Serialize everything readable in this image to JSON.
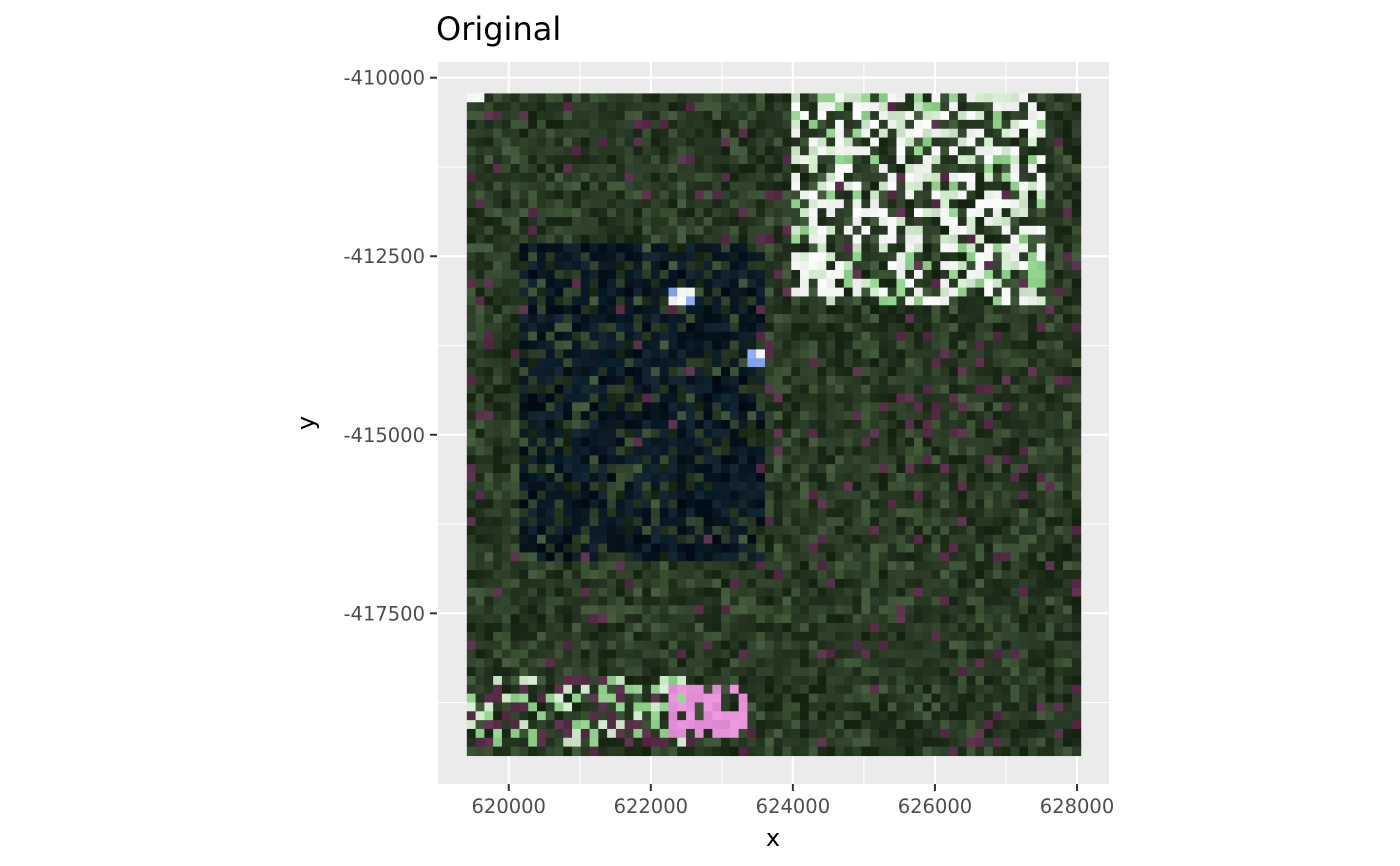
{
  "chart_data": {
    "type": "heatmap",
    "title": "Original",
    "xlabel": "x",
    "ylabel": "y",
    "xlim": [
      618990,
      628450
    ],
    "ylim": [
      -419890,
      -409780
    ],
    "raster_extent": {
      "x": [
        619410,
        628050
      ],
      "y": [
        -419490,
        -410220
      ]
    },
    "x_ticks": [
      620000,
      622000,
      624000,
      626000,
      628000
    ],
    "x_tick_labels": [
      "620000",
      "622000",
      "624000",
      "626000",
      "628000"
    ],
    "y_ticks": [
      -410000,
      -412500,
      -415000,
      -417500
    ],
    "y_tick_labels": [
      "-410000",
      "-412500",
      "-415000",
      "-417500"
    ],
    "grid": true,
    "panel_background": "#ebebeb",
    "palette": {
      "forest_dark": "#1c2a18",
      "forest": "#2b3d26",
      "forest_light": "#3d5436",
      "water_dark": "#06121c",
      "water": "#0d1f2a",
      "field_green": "#8fd08a",
      "field_pale": "#cfe8cc",
      "cloud_white": "#f4f6f4",
      "purple": "#5a2d4a",
      "magenta": "#e48fd8",
      "peach": "#f0c8a8",
      "blue": "#8aa8f0"
    },
    "features": [
      {
        "kind": "water",
        "x": [
          620200,
          623600
        ],
        "y": [
          -416800,
          -412300
        ]
      },
      {
        "kind": "cloud",
        "x": [
          624000,
          627600
        ],
        "y": [
          -413200,
          -410200
        ]
      },
      {
        "kind": "field",
        "x": [
          619400,
          622600
        ],
        "y": [
          -419400,
          -418400
        ]
      },
      {
        "kind": "magenta",
        "x": [
          622300,
          623400
        ],
        "y": [
          -419200,
          -418500
        ]
      },
      {
        "kind": "white_spot",
        "x": [
          622300,
          622600
        ],
        "y": [
          -413200,
          -412900
        ]
      },
      {
        "kind": "white_spot",
        "x": [
          623300,
          623600
        ],
        "y": [
          -414100,
          -413800
        ]
      }
    ]
  }
}
